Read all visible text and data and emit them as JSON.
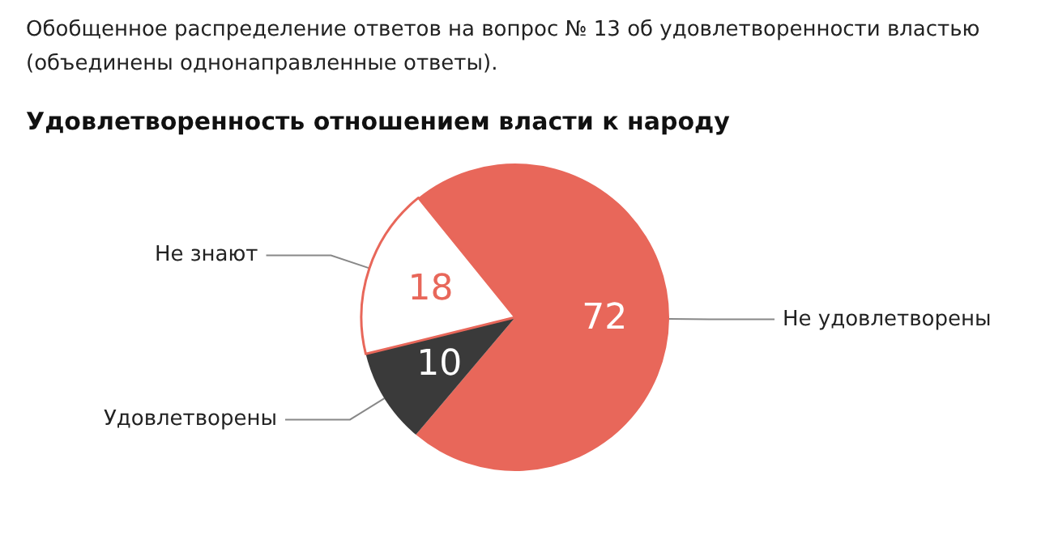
{
  "chart_data": {
    "type": "pie",
    "subtitle": "Обобщенное распределение ответов на вопрос № 13 об удовлетворенности властью (объединены однонаправленные ответы).",
    "title": "Удовлетворенность отношением власти к народу",
    "categories": [
      "Не удовлетворены",
      "Удовлетворены",
      "Не знают"
    ],
    "values": [
      72,
      10,
      18
    ],
    "colors": [
      "#e8675a",
      "#3a3a3a",
      "#ffffff"
    ],
    "data_labels": true,
    "legend": false
  }
}
